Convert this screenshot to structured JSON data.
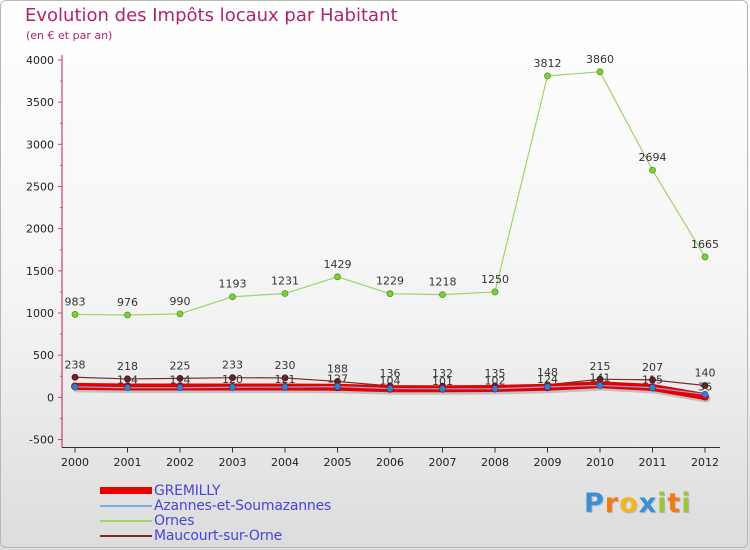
{
  "header": {
    "title": "Evolution des Impôts locaux par Habitant",
    "subtitle": "(en € et par an)"
  },
  "colors": {
    "title": "#b0246b",
    "gremilly": "#e80000",
    "azannes": "#7aaede",
    "ornes": "#9fd46a",
    "maucourt": "#7a2a2a",
    "legend_text": "#4646d8"
  },
  "logo": {
    "text": "Proxiti"
  },
  "chart_data": {
    "type": "line",
    "title": "Evolution des Impôts locaux par Habitant",
    "subtitle": "(en € et par an)",
    "xlabel": "",
    "ylabel": "",
    "x": [
      "2000",
      "2001",
      "2002",
      "2003",
      "2004",
      "2005",
      "2006",
      "2007",
      "2008",
      "2009",
      "2010",
      "2011",
      "2012"
    ],
    "ylim": [
      -500,
      4000
    ],
    "yticks": [
      -500,
      0,
      500,
      1000,
      1500,
      2000,
      2500,
      3000,
      3500,
      4000
    ],
    "grid": false,
    "legend_position": "bottom-left",
    "series": [
      {
        "name": "GREMILLY",
        "color": "#e80000",
        "values": [
          130,
          122,
          123,
          123,
          123,
          120,
          102,
          102,
          105,
          119,
          150,
          117,
          9
        ],
        "labels": [
          "",
          "",
          "",
          "",
          "",
          "",
          "",
          "",
          "",
          "",
          "",
          "",
          ""
        ]
      },
      {
        "name": "Azannes-et-Soumazannes",
        "color": "#7aaede",
        "values": [
          124,
          114,
          114,
          120,
          121,
          127,
          104,
          101,
          102,
          124,
          141,
          115,
          36
        ],
        "labels": [
          "",
          "114",
          "114",
          "120",
          "121",
          "127",
          "104",
          "101",
          "102",
          "124",
          "141",
          "115",
          "36"
        ]
      },
      {
        "name": "Ornes",
        "color": "#9fd46a",
        "values": [
          983,
          976,
          990,
          1193,
          1231,
          1429,
          1229,
          1218,
          1250,
          3812,
          3860,
          2694,
          1665
        ],
        "labels": [
          "983",
          "976",
          "990",
          "1193",
          "1231",
          "1429",
          "1229",
          "1218",
          "1250",
          "3812",
          "3860",
          "2694",
          "1665"
        ]
      },
      {
        "name": "Maucourt-sur-Orne",
        "color": "#7a2a2a",
        "values": [
          238,
          218,
          225,
          233,
          230,
          188,
          136,
          132,
          135,
          148,
          215,
          207,
          140
        ],
        "labels": [
          "238",
          "218",
          "225",
          "233",
          "230",
          "188",
          "136",
          "132",
          "135",
          "148",
          "215",
          "207",
          "140"
        ]
      }
    ]
  }
}
